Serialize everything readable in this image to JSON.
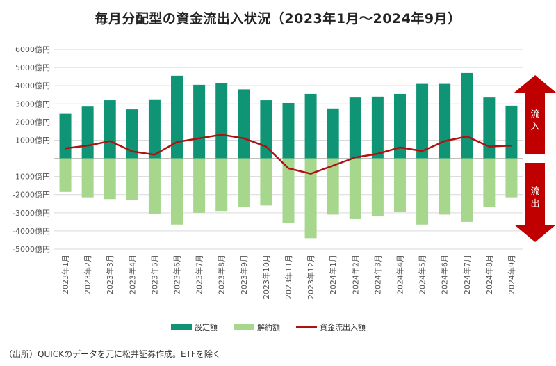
{
  "title": "毎月分配型の資金流出入状況（2023年1月〜2024年9月）",
  "source_note": "（出所）QUICKのデータを元に松井証券作成。ETFを除く",
  "arrows": {
    "inflow_label": "流入",
    "outflow_label": "流出"
  },
  "colors": {
    "setting": "#0f9475",
    "cancel": "#a6d78c",
    "net": "#b20f0f",
    "arrow": "#c00000"
  },
  "chart_data": {
    "type": "bar",
    "categories": [
      "2023年1月",
      "2023年2月",
      "2023年3月",
      "2023年4月",
      "2023年5月",
      "2023年6月",
      "2023年7月",
      "2023年8月",
      "2023年9月",
      "2023年10月",
      "2023年11月",
      "2023年12月",
      "2024年1月",
      "2024年2月",
      "2024年3月",
      "2024年4月",
      "2024年5月",
      "2024年6月",
      "2024年7月",
      "2024年8月",
      "2024年9月"
    ],
    "series": [
      {
        "name": "設定額",
        "kind": "bar",
        "values": [
          2450,
          2850,
          3200,
          2700,
          3250,
          4550,
          4050,
          4150,
          3800,
          3200,
          3050,
          3550,
          2750,
          3350,
          3400,
          3550,
          4100,
          4100,
          4700,
          3350,
          2900
        ]
      },
      {
        "name": "解約額",
        "kind": "bar",
        "values": [
          -1850,
          -2150,
          -2250,
          -2300,
          -3050,
          -3650,
          -3000,
          -2900,
          -2700,
          -2600,
          -3550,
          -4400,
          -3100,
          -3350,
          -3200,
          -2950,
          -3650,
          -3100,
          -3500,
          -2700,
          -2150
        ]
      },
      {
        "name": "資金流出入額",
        "kind": "line",
        "values": [
          550,
          700,
          950,
          380,
          200,
          900,
          1100,
          1300,
          1100,
          650,
          -550,
          -850,
          -400,
          50,
          250,
          600,
          400,
          950,
          1200,
          650,
          700
        ]
      }
    ],
    "y_ticks": [
      6000,
      5000,
      4000,
      3000,
      2000,
      1000,
      -1000,
      -2000,
      -3000,
      -4000,
      -5000
    ],
    "y_tick_labels": [
      "6000億円",
      "5000億円",
      "4000億円",
      "3000億円",
      "2000億円",
      "1000億円",
      "-1000億円",
      "-2000億円",
      "-3000億円",
      "-4000億円",
      "-5000億円"
    ],
    "ylim": [
      -5000,
      6000
    ],
    "grid": true,
    "legend_position": "bottom"
  }
}
